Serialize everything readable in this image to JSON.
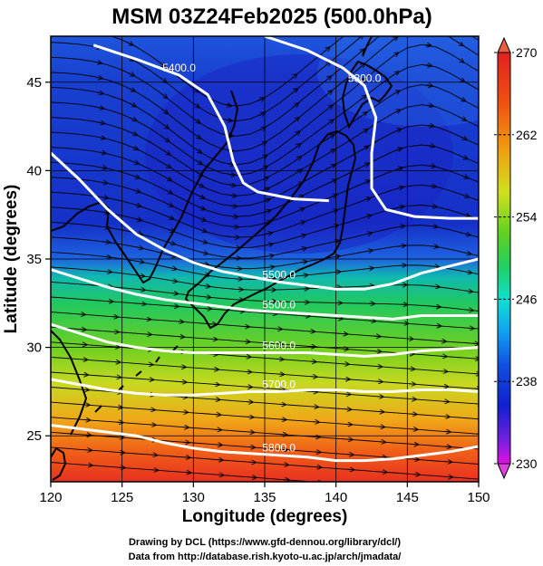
{
  "title": "MSM 03Z24Feb2025 (500.0hPa)",
  "chart_data": {
    "type": "heatmap",
    "title": "MSM 03Z24Feb2025 (500.0hPa)",
    "xlabel": "Longitude (degrees)",
    "ylabel": "Latitude  (degrees)",
    "xlim": [
      120,
      150
    ],
    "ylim": [
      22.4,
      47.6
    ],
    "x_ticks": [
      "120",
      "125",
      "130",
      "135",
      "140",
      "145",
      "150"
    ],
    "y_ticks": [
      "25",
      "30",
      "35",
      "40",
      "45"
    ],
    "x_tick_values": [
      120,
      125,
      130,
      135,
      140,
      145,
      150
    ],
    "y_tick_values": [
      25,
      30,
      35,
      40,
      45
    ],
    "grid": true,
    "colorbar": {
      "min": 230,
      "max": 270,
      "tick_labels": [
        "270",
        "262",
        "254",
        "246",
        "238",
        "230"
      ],
      "tick_values": [
        270,
        262,
        254,
        246,
        238,
        230
      ],
      "colors": [
        "#e010e0",
        "#7020e0",
        "#1020d0",
        "#1050e0",
        "#10a0f0",
        "#10e0d0",
        "#20d060",
        "#60d020",
        "#d0e020",
        "#f0a010",
        "#f05010",
        "#e02020"
      ]
    },
    "contours": [
      {
        "label": "5400.0",
        "value": 5400,
        "points": [
          [
            123.0,
            47.1
          ],
          [
            126.0,
            46.3
          ],
          [
            129.0,
            45.4
          ],
          [
            131.0,
            44.3
          ],
          [
            132.2,
            42.5
          ],
          [
            132.8,
            40.5
          ],
          [
            133.5,
            39.3
          ],
          [
            134.5,
            38.8
          ],
          [
            137.0,
            38.4
          ],
          [
            139.5,
            38.3
          ]
        ]
      },
      {
        "label": "5300.0",
        "value": 5300,
        "points": [
          [
            135.0,
            47.6
          ],
          [
            138.0,
            46.8
          ],
          [
            140.5,
            45.8
          ],
          [
            142.0,
            44.8
          ],
          [
            142.8,
            43.0
          ],
          [
            142.5,
            41.0
          ],
          [
            142.5,
            39.0
          ],
          [
            143.5,
            37.8
          ],
          [
            145.5,
            37.4
          ],
          [
            148.0,
            37.3
          ],
          [
            150.0,
            37.3
          ]
        ]
      },
      {
        "label": "5500.0",
        "value": 5500,
        "points": [
          [
            120.0,
            41.0
          ],
          [
            122.0,
            39.5
          ],
          [
            124.0,
            37.8
          ],
          [
            126.0,
            36.4
          ],
          [
            128.0,
            35.5
          ],
          [
            130.0,
            34.8
          ],
          [
            132.0,
            34.3
          ],
          [
            134.0,
            34.0
          ],
          [
            136.0,
            33.7
          ],
          [
            138.0,
            33.5
          ],
          [
            140.0,
            33.3
          ],
          [
            142.0,
            33.3
          ],
          [
            144.0,
            33.6
          ],
          [
            146.0,
            34.2
          ],
          [
            148.0,
            34.6
          ],
          [
            150.0,
            35.0
          ]
        ]
      },
      {
        "label": "5500.0",
        "value": 5500,
        "points": [
          [
            120.0,
            34.4
          ],
          [
            122.0,
            33.9
          ],
          [
            124.0,
            33.4
          ],
          [
            126.0,
            33.0
          ],
          [
            128.0,
            32.7
          ],
          [
            130.0,
            32.5
          ],
          [
            132.0,
            32.3
          ],
          [
            134.0,
            32.1
          ],
          [
            136.0,
            32.0
          ],
          [
            138.0,
            31.9
          ],
          [
            140.0,
            31.8
          ],
          [
            142.0,
            31.7
          ],
          [
            144.0,
            31.6
          ],
          [
            146.0,
            31.8
          ],
          [
            148.0,
            31.8
          ],
          [
            150.0,
            31.8
          ]
        ]
      },
      {
        "label": "5600.0",
        "value": 5600,
        "points": [
          [
            120.0,
            31.3
          ],
          [
            122.0,
            30.8
          ],
          [
            124.0,
            30.3
          ],
          [
            126.0,
            30.0
          ],
          [
            128.0,
            29.8
          ],
          [
            130.0,
            29.7
          ],
          [
            132.0,
            29.7
          ],
          [
            134.0,
            29.7
          ],
          [
            136.0,
            29.7
          ],
          [
            138.0,
            29.7
          ],
          [
            140.0,
            29.6
          ],
          [
            142.0,
            29.5
          ],
          [
            144.0,
            29.6
          ],
          [
            146.0,
            29.8
          ],
          [
            148.0,
            29.9
          ],
          [
            150.0,
            30.0
          ]
        ]
      },
      {
        "label": "5700.0",
        "value": 5700,
        "points": [
          [
            120.0,
            28.2
          ],
          [
            122.0,
            27.9
          ],
          [
            124.0,
            27.6
          ],
          [
            126.0,
            27.4
          ],
          [
            128.0,
            27.3
          ],
          [
            130.0,
            27.3
          ],
          [
            132.0,
            27.4
          ],
          [
            134.0,
            27.5
          ],
          [
            136.0,
            27.5
          ],
          [
            138.0,
            27.6
          ],
          [
            140.0,
            27.6
          ],
          [
            142.0,
            27.5
          ],
          [
            144.0,
            27.5
          ],
          [
            146.0,
            27.6
          ],
          [
            148.0,
            27.6
          ],
          [
            150.0,
            27.5
          ]
        ]
      },
      {
        "label": "5800.0",
        "value": 5800,
        "points": [
          [
            120.0,
            25.6
          ],
          [
            122.0,
            25.4
          ],
          [
            124.0,
            25.2
          ],
          [
            126.0,
            25.0
          ],
          [
            128.0,
            24.6
          ],
          [
            130.0,
            24.3
          ],
          [
            132.0,
            24.1
          ],
          [
            134.0,
            24.0
          ],
          [
            136.0,
            23.9
          ],
          [
            138.0,
            23.8
          ],
          [
            140.0,
            23.6
          ],
          [
            142.0,
            23.6
          ],
          [
            144.0,
            23.7
          ],
          [
            146.0,
            23.9
          ],
          [
            148.0,
            24.1
          ],
          [
            150.0,
            24.4
          ]
        ]
      }
    ]
  },
  "credits": {
    "line1": "Drawing by DCL (https://www.gfd-dennou.org/library/dcl/)",
    "line2": "Data from http://database.rish.kyoto-u.ac.jp/arch/jmadata/"
  }
}
